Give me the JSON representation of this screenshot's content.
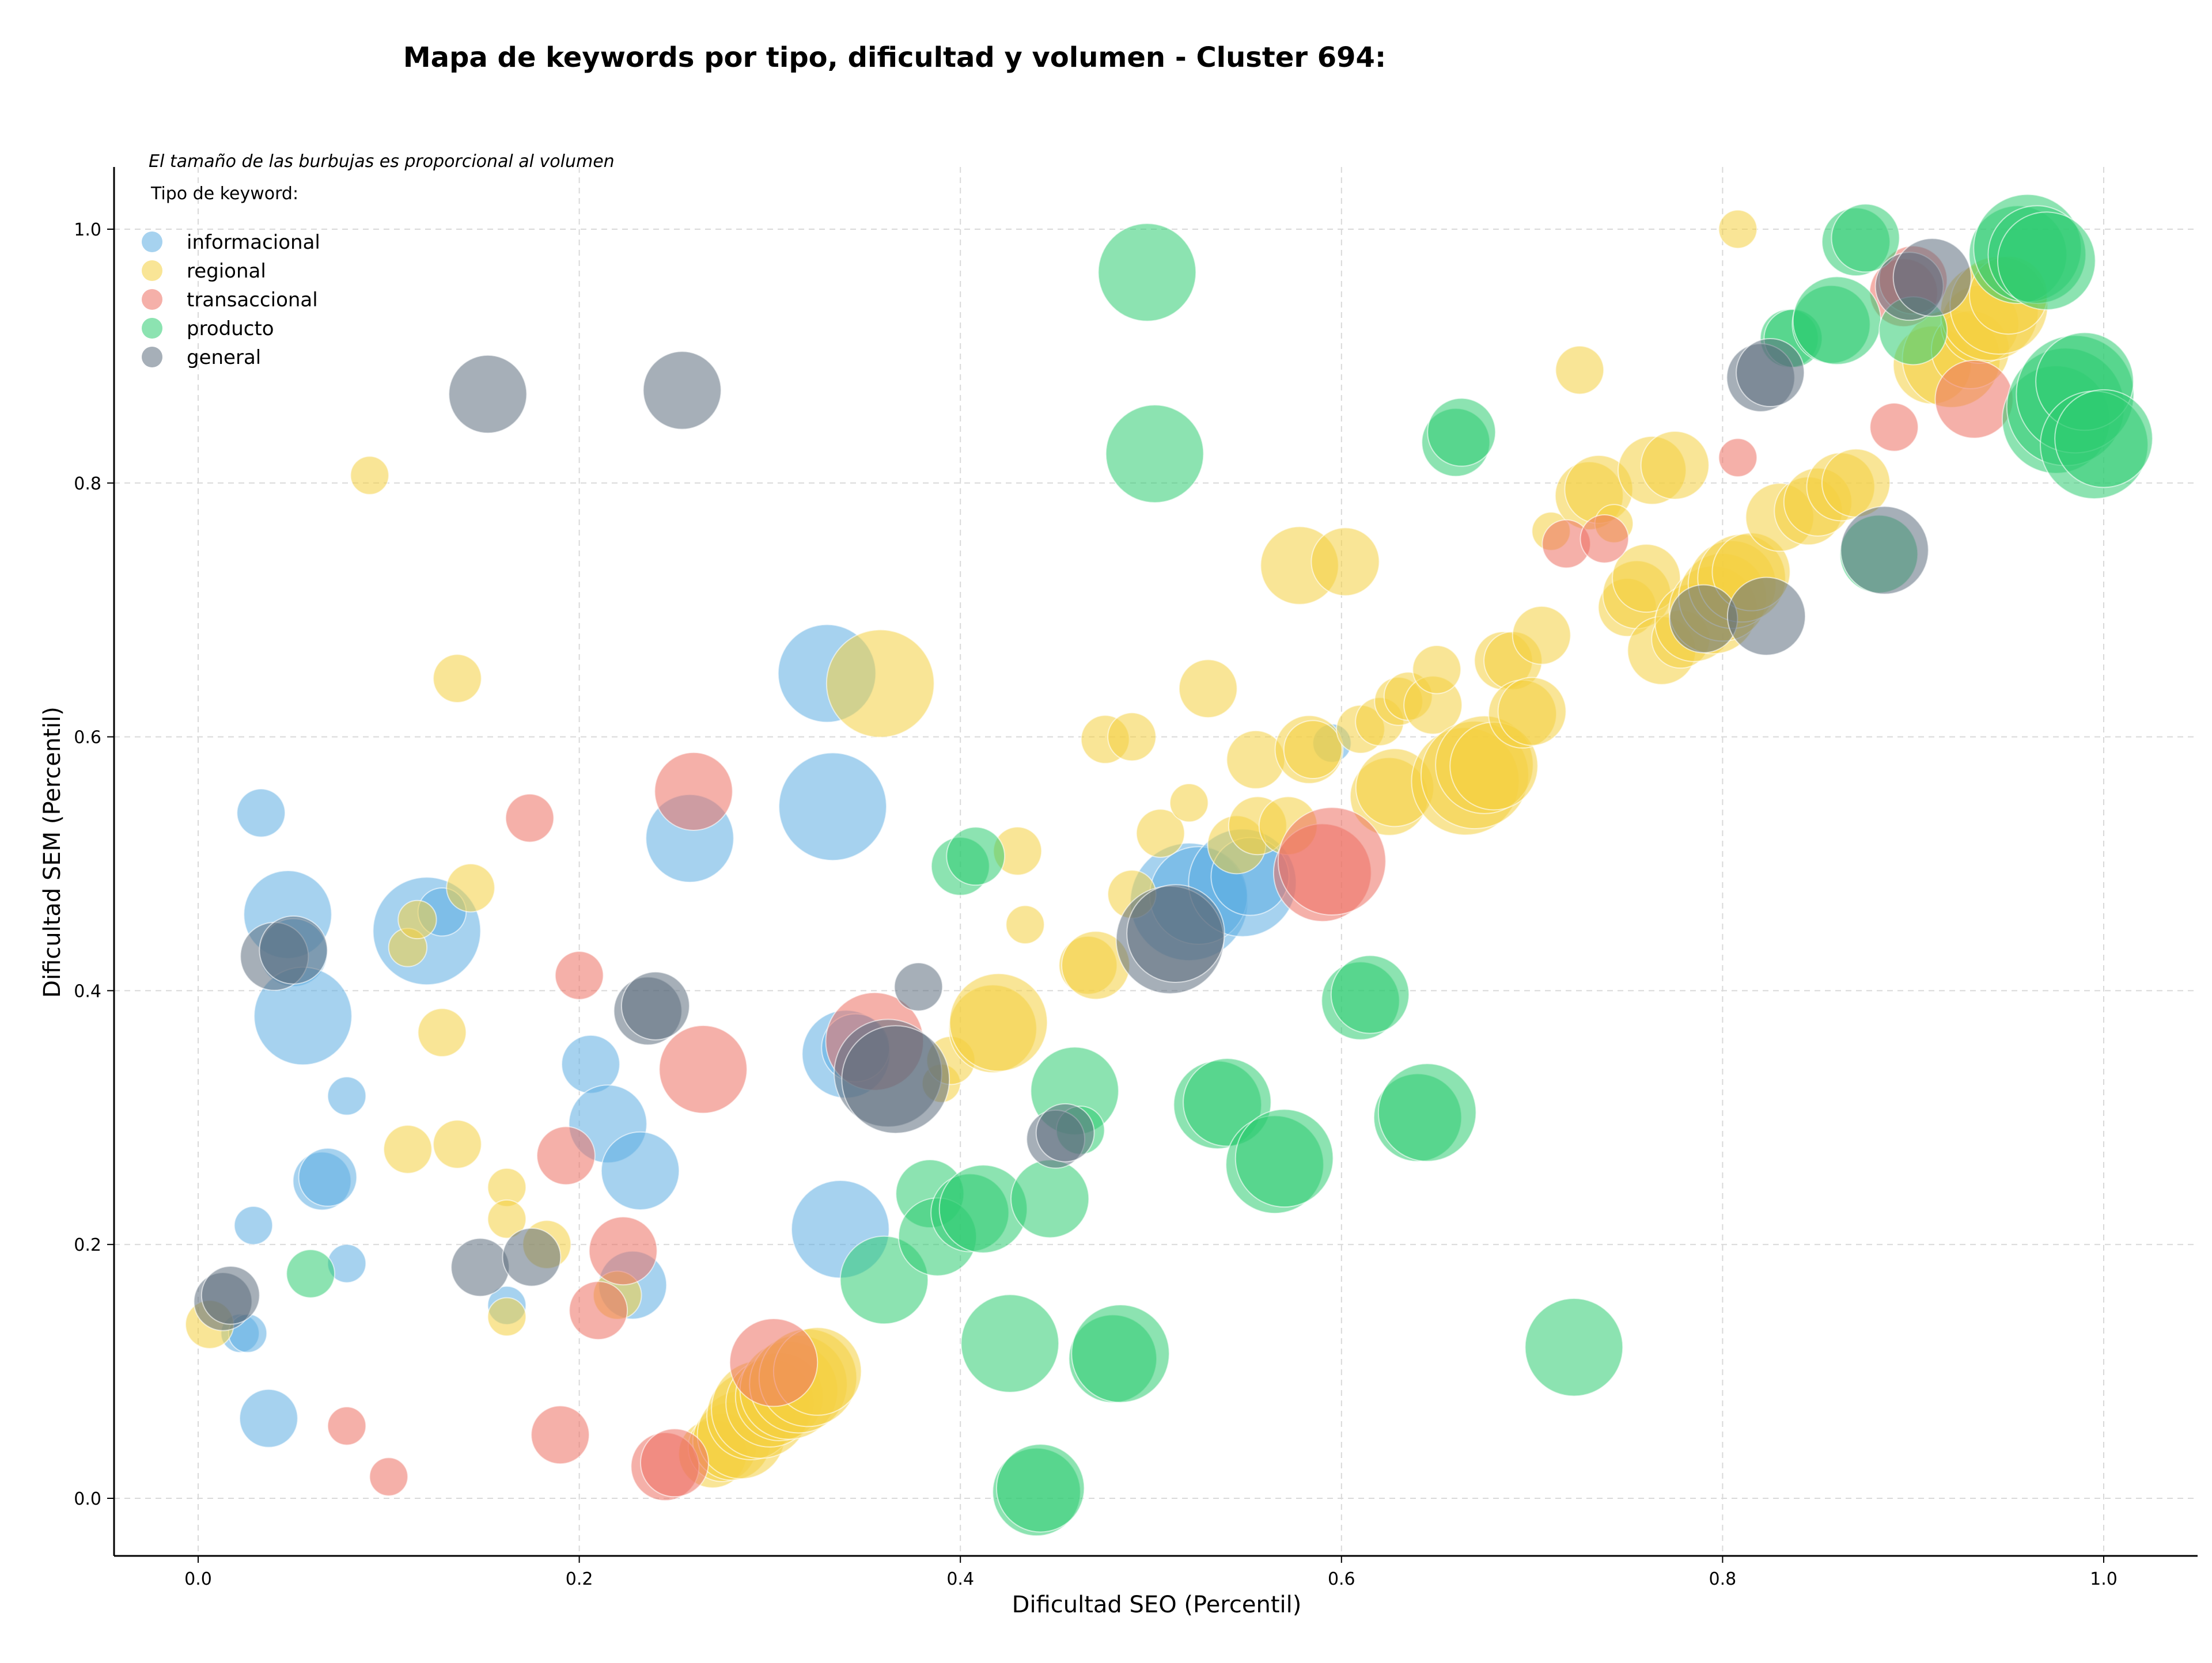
{
  "chart_data": {
    "type": "scatter",
    "title": "Mapa de keywords por tipo, dificultad y volumen - Cluster 694:",
    "xlabel": "Dificultad SEO (Percentil)",
    "ylabel": "Dificultad SEM (Percentil)",
    "xlim": [
      -0.04,
      1.05
    ],
    "ylim": [
      -0.045,
      1.05
    ],
    "xticks": [
      "0.0",
      "0.2",
      "0.4",
      "0.6",
      "0.8",
      "1.0"
    ],
    "yticks": [
      "0.0",
      "0.2",
      "0.4",
      "0.6",
      "0.8",
      "1.0"
    ],
    "grid": true,
    "legend_placement": "top-left",
    "note": "El tamaño de las burbujas es proporcional al volumen",
    "legend_title": "Tipo de keyword:",
    "series": [
      {
        "name": "informacional",
        "color": "#5dade2",
        "points": [
          [
            0.033,
            0.54,
            3
          ],
          [
            0.047,
            0.46,
            7
          ],
          [
            0.05,
            0.43,
            5
          ],
          [
            0.055,
            0.38,
            8
          ],
          [
            0.065,
            0.25,
            4
          ],
          [
            0.068,
            0.253,
            4
          ],
          [
            0.078,
            0.317,
            2
          ],
          [
            0.078,
            0.185,
            2
          ],
          [
            0.029,
            0.215,
            2
          ],
          [
            0.022,
            0.13,
            2
          ],
          [
            0.026,
            0.13,
            2
          ],
          [
            0.037,
            0.063,
            4
          ],
          [
            0.12,
            0.447,
            9
          ],
          [
            0.128,
            0.462,
            3
          ],
          [
            0.162,
            0.152,
            2
          ],
          [
            0.206,
            0.342,
            4
          ],
          [
            0.215,
            0.295,
            6
          ],
          [
            0.232,
            0.258,
            6
          ],
          [
            0.228,
            0.168,
            5
          ],
          [
            0.258,
            0.52,
            7
          ],
          [
            0.33,
            0.65,
            8
          ],
          [
            0.333,
            0.545,
            9
          ],
          [
            0.337,
            0.212,
            8
          ],
          [
            0.34,
            0.35,
            7
          ],
          [
            0.345,
            0.355,
            5
          ],
          [
            0.52,
            0.47,
            10
          ],
          [
            0.525,
            0.475,
            8
          ],
          [
            0.548,
            0.485,
            9
          ],
          [
            0.552,
            0.49,
            6
          ],
          [
            0.595,
            0.595,
            2
          ]
        ]
      },
      {
        "name": "regional",
        "color": "#f4d03f",
        "points": [
          [
            0.006,
            0.137,
            3
          ],
          [
            0.09,
            0.806,
            2
          ],
          [
            0.11,
            0.275,
            3
          ],
          [
            0.11,
            0.434,
            2
          ],
          [
            0.115,
            0.456,
            2
          ],
          [
            0.128,
            0.367,
            3
          ],
          [
            0.136,
            0.646,
            3
          ],
          [
            0.136,
            0.279,
            3
          ],
          [
            0.143,
            0.481,
            3
          ],
          [
            0.162,
            0.245,
            2
          ],
          [
            0.162,
            0.22,
            2
          ],
          [
            0.162,
            0.143,
            2
          ],
          [
            0.183,
            0.2,
            3
          ],
          [
            0.22,
            0.16,
            3
          ],
          [
            0.358,
            0.642,
            9
          ],
          [
            0.39,
            0.327,
            2
          ],
          [
            0.395,
            0.345,
            3
          ],
          [
            0.417,
            0.37,
            7
          ],
          [
            0.42,
            0.375,
            8
          ],
          [
            0.43,
            0.51,
            3
          ],
          [
            0.434,
            0.452,
            2
          ],
          [
            0.467,
            0.42,
            4
          ],
          [
            0.471,
            0.42,
            5
          ],
          [
            0.476,
            0.598,
            3
          ],
          [
            0.49,
            0.476,
            3
          ],
          [
            0.49,
            0.6,
            3
          ],
          [
            0.505,
            0.524,
            3
          ],
          [
            0.52,
            0.548,
            2
          ],
          [
            0.53,
            0.638,
            4
          ],
          [
            0.545,
            0.515,
            4
          ],
          [
            0.555,
            0.582,
            4
          ],
          [
            0.556,
            0.53,
            4
          ],
          [
            0.572,
            0.53,
            4
          ],
          [
            0.578,
            0.735,
            6
          ],
          [
            0.583,
            0.59,
            5
          ],
          [
            0.585,
            0.59,
            4
          ],
          [
            0.602,
            0.738,
            5
          ],
          [
            0.61,
            0.606,
            3
          ],
          [
            0.62,
            0.612,
            3
          ],
          [
            0.625,
            0.553,
            6
          ],
          [
            0.628,
            0.56,
            6
          ],
          [
            0.63,
            0.628,
            3
          ],
          [
            0.635,
            0.632,
            3
          ],
          [
            0.648,
            0.625,
            4
          ],
          [
            0.65,
            0.653,
            3
          ],
          [
            0.665,
            0.565,
            9
          ],
          [
            0.67,
            0.57,
            9
          ],
          [
            0.675,
            0.578,
            8
          ],
          [
            0.68,
            0.577,
            7
          ],
          [
            0.685,
            0.66,
            4
          ],
          [
            0.69,
            0.66,
            4
          ],
          [
            0.695,
            0.618,
            5
          ],
          [
            0.7,
            0.62,
            5
          ],
          [
            0.705,
            0.68,
            4
          ],
          [
            0.71,
            0.762,
            2
          ],
          [
            0.725,
            0.889,
            3
          ],
          [
            0.73,
            0.79,
            5
          ],
          [
            0.735,
            0.795,
            5
          ],
          [
            0.743,
            0.768,
            2
          ],
          [
            0.75,
            0.702,
            4
          ],
          [
            0.755,
            0.712,
            5
          ],
          [
            0.76,
            0.725,
            5
          ],
          [
            0.763,
            0.81,
            5
          ],
          [
            0.768,
            0.668,
            5
          ],
          [
            0.775,
            0.814,
            5
          ],
          [
            0.778,
            0.677,
            4
          ],
          [
            0.785,
            0.69,
            6
          ],
          [
            0.795,
            0.7,
            7
          ],
          [
            0.8,
            0.71,
            7
          ],
          [
            0.805,
            0.72,
            7
          ],
          [
            0.81,
            0.725,
            7
          ],
          [
            0.815,
            0.73,
            6
          ],
          [
            0.808,
            1.0,
            2
          ],
          [
            0.83,
            0.773,
            5
          ],
          [
            0.845,
            0.778,
            5
          ],
          [
            0.85,
            0.785,
            5
          ],
          [
            0.862,
            0.797,
            5
          ],
          [
            0.87,
            0.8,
            5
          ],
          [
            0.91,
            0.893,
            6
          ],
          [
            0.92,
            0.898,
            8
          ],
          [
            0.93,
            0.905,
            6
          ],
          [
            0.935,
            0.925,
            6
          ],
          [
            0.94,
            0.935,
            8
          ],
          [
            0.945,
            0.94,
            8
          ],
          [
            0.95,
            0.948,
            6
          ],
          [
            0.27,
            0.035,
            5
          ],
          [
            0.275,
            0.04,
            5
          ],
          [
            0.28,
            0.045,
            6
          ],
          [
            0.285,
            0.05,
            7
          ],
          [
            0.29,
            0.065,
            7
          ],
          [
            0.295,
            0.07,
            8
          ],
          [
            0.3,
            0.075,
            7
          ],
          [
            0.305,
            0.08,
            7
          ],
          [
            0.31,
            0.085,
            8
          ],
          [
            0.315,
            0.09,
            8
          ],
          [
            0.32,
            0.095,
            8
          ],
          [
            0.325,
            0.1,
            7
          ]
        ]
      },
      {
        "name": "transaccional",
        "color": "#ec7063",
        "points": [
          [
            0.078,
            0.057,
            2
          ],
          [
            0.1,
            0.017,
            2
          ],
          [
            0.174,
            0.536,
            3
          ],
          [
            0.19,
            0.05,
            4
          ],
          [
            0.193,
            0.27,
            4
          ],
          [
            0.2,
            0.412,
            3
          ],
          [
            0.21,
            0.148,
            4
          ],
          [
            0.223,
            0.195,
            5
          ],
          [
            0.245,
            0.025,
            5
          ],
          [
            0.25,
            0.028,
            5
          ],
          [
            0.26,
            0.557,
            6
          ],
          [
            0.265,
            0.338,
            7
          ],
          [
            0.302,
            0.107,
            7
          ],
          [
            0.355,
            0.36,
            8
          ],
          [
            0.59,
            0.493,
            8
          ],
          [
            0.595,
            0.502,
            9
          ],
          [
            0.718,
            0.752,
            3
          ],
          [
            0.738,
            0.756,
            3
          ],
          [
            0.808,
            0.82,
            2
          ],
          [
            0.89,
            0.844,
            3
          ],
          [
            0.895,
            0.95,
            5
          ],
          [
            0.9,
            0.96,
            5
          ],
          [
            0.932,
            0.866,
            6
          ]
        ]
      },
      {
        "name": "producto",
        "color": "#2ecc71",
        "points": [
          [
            0.059,
            0.177,
            3
          ],
          [
            0.36,
            0.172,
            7
          ],
          [
            0.384,
            0.24,
            5
          ],
          [
            0.388,
            0.206,
            6
          ],
          [
            0.4,
            0.498,
            4
          ],
          [
            0.405,
            0.225,
            6
          ],
          [
            0.408,
            0.506,
            4
          ],
          [
            0.412,
            0.228,
            7
          ],
          [
            0.426,
            0.122,
            8
          ],
          [
            0.44,
            0.005,
            7
          ],
          [
            0.442,
            0.008,
            7
          ],
          [
            0.447,
            0.236,
            6
          ],
          [
            0.46,
            0.321,
            7
          ],
          [
            0.463,
            0.29,
            3
          ],
          [
            0.48,
            0.11,
            7
          ],
          [
            0.484,
            0.114,
            8
          ],
          [
            0.498,
            0.966,
            8
          ],
          [
            0.502,
            0.823,
            8
          ],
          [
            0.535,
            0.31,
            7
          ],
          [
            0.54,
            0.312,
            7
          ],
          [
            0.565,
            0.263,
            8
          ],
          [
            0.57,
            0.268,
            8
          ],
          [
            0.61,
            0.392,
            6
          ],
          [
            0.615,
            0.397,
            6
          ],
          [
            0.64,
            0.3,
            7
          ],
          [
            0.645,
            0.304,
            8
          ],
          [
            0.66,
            0.832,
            5
          ],
          [
            0.663,
            0.84,
            5
          ],
          [
            0.722,
            0.119,
            8
          ],
          [
            0.835,
            0.914,
            4
          ],
          [
            0.837,
            0.914,
            4
          ],
          [
            0.857,
            0.925,
            6
          ],
          [
            0.86,
            0.928,
            7
          ],
          [
            0.87,
            0.99,
            5
          ],
          [
            0.875,
            0.993,
            5
          ],
          [
            0.882,
            0.744,
            6
          ],
          [
            0.9,
            0.92,
            5
          ],
          [
            0.955,
            0.98,
            8
          ],
          [
            0.96,
            0.985,
            9
          ],
          [
            0.965,
            0.98,
            8
          ],
          [
            0.97,
            0.975,
            8
          ],
          [
            0.975,
            0.85,
            9
          ],
          [
            0.98,
            0.86,
            10
          ],
          [
            0.985,
            0.87,
            10
          ],
          [
            0.99,
            0.88,
            8
          ],
          [
            0.995,
            0.83,
            9
          ],
          [
            1.0,
            0.835,
            8
          ]
        ]
      },
      {
        "name": "general",
        "color": "#5d6d7e",
        "points": [
          [
            0.013,
            0.155,
            4
          ],
          [
            0.017,
            0.16,
            4
          ],
          [
            0.04,
            0.427,
            5
          ],
          [
            0.05,
            0.432,
            5
          ],
          [
            0.148,
            0.182,
            4
          ],
          [
            0.152,
            0.87,
            6
          ],
          [
            0.175,
            0.19,
            4
          ],
          [
            0.236,
            0.384,
            5
          ],
          [
            0.24,
            0.388,
            5
          ],
          [
            0.254,
            0.873,
            6
          ],
          [
            0.362,
            0.335,
            9
          ],
          [
            0.366,
            0.33,
            9
          ],
          [
            0.378,
            0.403,
            3
          ],
          [
            0.45,
            0.283,
            4
          ],
          [
            0.455,
            0.288,
            4
          ],
          [
            0.51,
            0.44,
            9
          ],
          [
            0.513,
            0.445,
            8
          ],
          [
            0.79,
            0.693,
            5
          ],
          [
            0.82,
            0.883,
            5
          ],
          [
            0.825,
            0.887,
            5
          ],
          [
            0.823,
            0.695,
            6
          ],
          [
            0.885,
            0.747,
            7
          ],
          [
            0.898,
            0.955,
            5
          ],
          [
            0.91,
            0.962,
            6
          ]
        ]
      }
    ]
  }
}
